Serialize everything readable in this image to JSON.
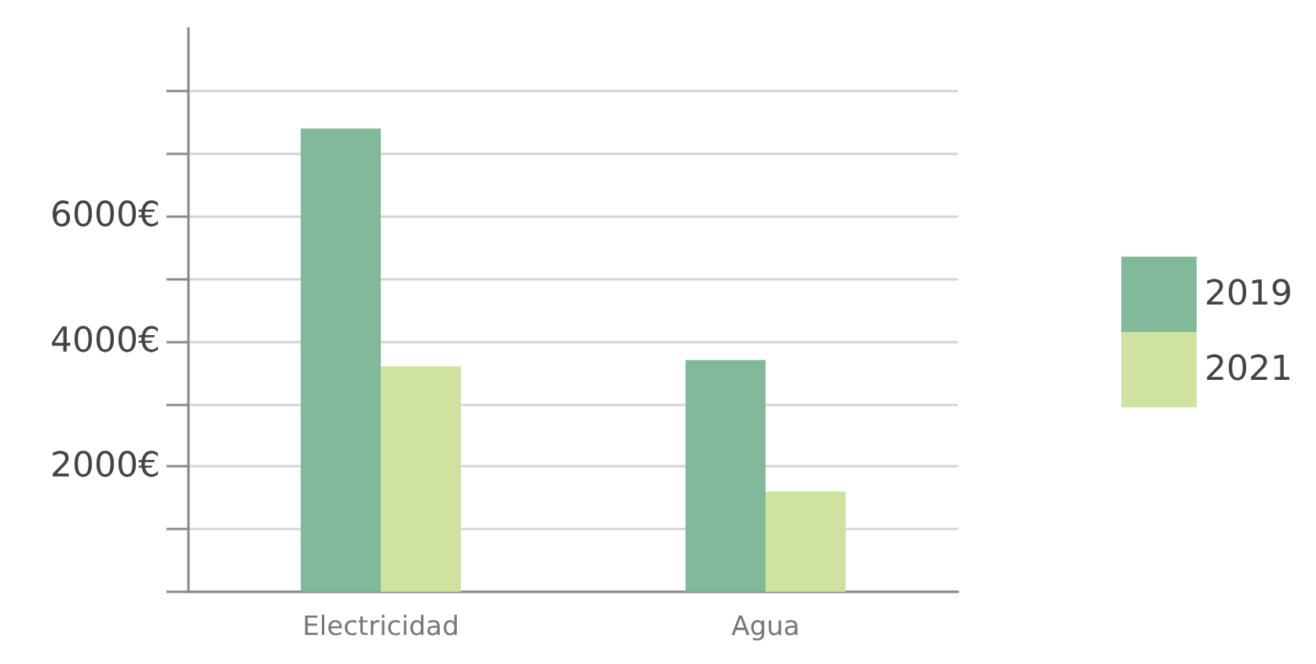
{
  "chart_data": {
    "type": "bar",
    "categories": [
      "Electricidad",
      "Agua"
    ],
    "series": [
      {
        "name": "2019",
        "color": "#82b99a",
        "values": [
          7400,
          3700
        ]
      },
      {
        "name": "2021",
        "color": "#cde39f",
        "values": [
          3600,
          1600
        ]
      }
    ],
    "ylim": [
      0,
      9000
    ],
    "yticks": [
      {
        "value": 0,
        "label": null
      },
      {
        "value": 1000,
        "label": null
      },
      {
        "value": 2000,
        "label": "2000€"
      },
      {
        "value": 3000,
        "label": null
      },
      {
        "value": 4000,
        "label": "4000€"
      },
      {
        "value": 5000,
        "label": null
      },
      {
        "value": 6000,
        "label": "6000€"
      },
      {
        "value": 7000,
        "label": null
      },
      {
        "value": 8000,
        "label": null
      }
    ],
    "grid": "y",
    "legend": "right"
  }
}
